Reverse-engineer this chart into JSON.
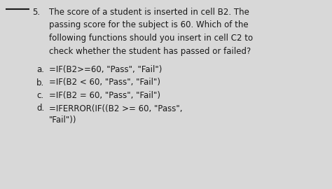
{
  "bg_color": "#d8d8d8",
  "text_color": "#1a1a1a",
  "figsize": [
    4.74,
    2.7
  ],
  "dpi": 100,
  "font_size": 8.5,
  "question_number": "5.",
  "lines": [
    "The score of a student is inserted in cell B2. The",
    "passing score for the subject is 60. Which of the",
    "following functions should you insert in cell C2 to",
    "check whether the student has passed or failed?"
  ],
  "options": [
    [
      "a.",
      "=IF(B2>=60, \"Pass\", \"Fail\")"
    ],
    [
      "b.",
      "=IF(B2 < 60, \"Pass\", \"Fail\")"
    ],
    [
      "c.",
      "=IF(B2 = 60, \"Pass\", \"Fail\")"
    ],
    [
      "d.",
      "=IFERROR(IF((B2 >= 60, \"Pass\","
    ]
  ],
  "option_d_line2": "\"Fail\"))"
}
